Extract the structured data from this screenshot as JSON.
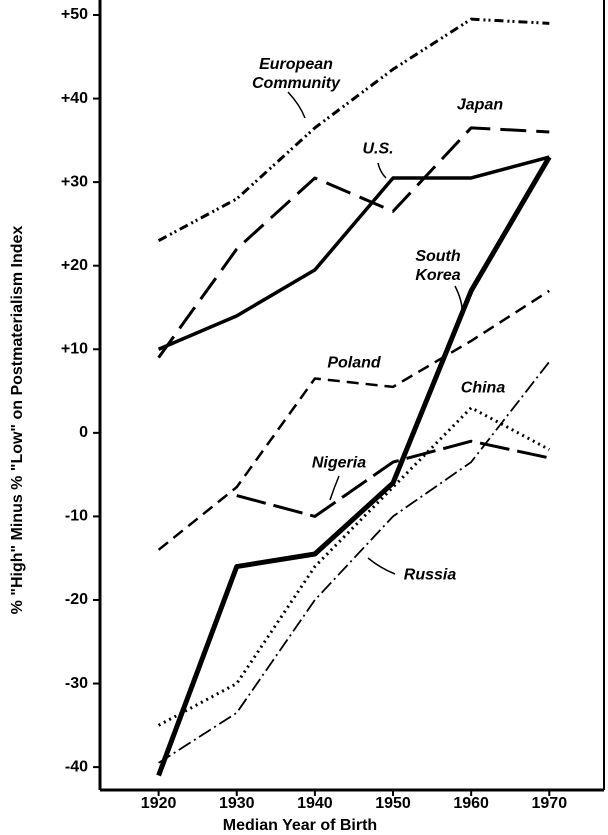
{
  "chart_data": {
    "type": "line",
    "x_label": "Median Year of Birth",
    "y_label": "% \"High\" Minus % \"Low\" on Postmaterialism Index",
    "x": [
      1920,
      1930,
      1940,
      1950,
      1960,
      1970
    ],
    "xlim": [
      1912.5,
      1977
    ],
    "xticks": [
      1920,
      1930,
      1940,
      1950,
      1960,
      1970
    ],
    "ylim": [
      -42.5,
      50
    ],
    "yticks": [
      {
        "value": 50,
        "label": "+50"
      },
      {
        "value": 40,
        "label": "+40"
      },
      {
        "value": 30,
        "label": "+30"
      },
      {
        "value": 20,
        "label": "+20"
      },
      {
        "value": 10,
        "label": "+10"
      },
      0,
      -10,
      -20,
      -30,
      -40
    ],
    "series": [
      {
        "name": "European Community",
        "color": "#000000",
        "dash": "9 4 2 3 2 4",
        "width": 3,
        "values": [
          23,
          28,
          36.5,
          43.5,
          49.5,
          49
        ]
      },
      {
        "name": "Japan",
        "color": "#000000",
        "dash": "26 10",
        "width": 3,
        "values": [
          9,
          22,
          30.5,
          26.5,
          36.5,
          36
        ]
      },
      {
        "name": "U.S.",
        "color": "#000000",
        "dash": "none",
        "width": 3.5,
        "values": [
          10,
          14,
          19.5,
          30.5,
          30.5,
          33
        ]
      },
      {
        "name": "South Korea",
        "color": "#000000",
        "dash": "none",
        "width": 5,
        "values": [
          -41,
          -16,
          -14.5,
          -6,
          17,
          33
        ]
      },
      {
        "name": "Poland",
        "color": "#000000",
        "dash": "12 7",
        "width": 2.5,
        "values": [
          -14,
          -6.5,
          6.5,
          5.5,
          11,
          17
        ]
      },
      {
        "name": "China",
        "color": "#000000",
        "dash": "2 4",
        "width": 3,
        "values": [
          -35,
          -30,
          -16,
          -6.5,
          3,
          -2
        ]
      },
      {
        "name": "Nigeria",
        "color": "#000000",
        "dash": "30 8",
        "width": 3,
        "values": [
          null,
          -7.5,
          -10,
          -3.5,
          -1,
          -3
        ]
      },
      {
        "name": "Russia",
        "color": "#000000",
        "dash": "14 4 2 4",
        "width": 1.8,
        "values": [
          -39.5,
          -33.5,
          -20,
          -10,
          -3.5,
          8.5
        ]
      }
    ]
  }
}
